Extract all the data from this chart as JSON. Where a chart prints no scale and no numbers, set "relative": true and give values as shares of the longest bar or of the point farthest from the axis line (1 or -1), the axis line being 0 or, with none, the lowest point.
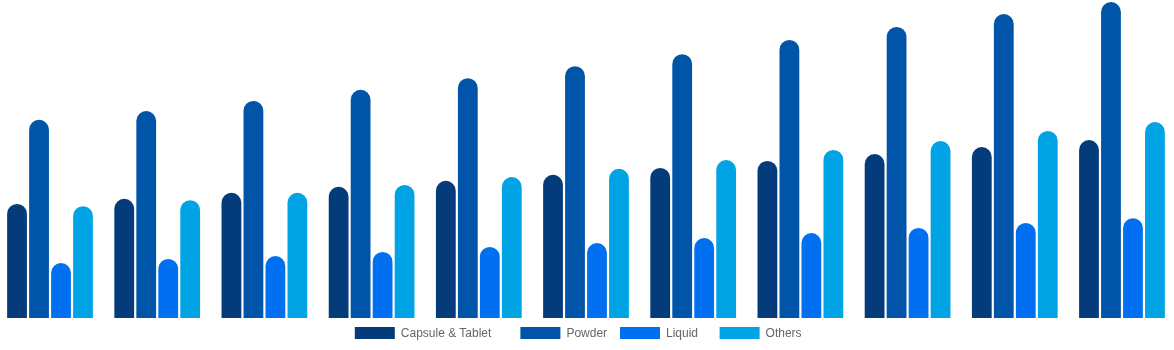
{
  "chart_data": {
    "type": "bar",
    "relative": true,
    "categories": [
      null,
      null,
      null,
      null,
      null,
      null,
      null,
      null,
      null,
      null,
      null
    ],
    "legend": "bottom",
    "series": [
      {
        "name": "Capsule & Tablet",
        "color": "#043b7a",
        "values": [
          0.361,
          0.377,
          0.396,
          0.415,
          0.434,
          0.453,
          0.475,
          0.497,
          0.519,
          0.541,
          0.563
        ]
      },
      {
        "name": "Powder",
        "color": "#0055a8",
        "values": [
          0.627,
          0.655,
          0.687,
          0.722,
          0.759,
          0.797,
          0.835,
          0.88,
          0.921,
          0.962,
          1
        ]
      },
      {
        "name": "Liquid",
        "color": "#0070f0",
        "values": [
          0.174,
          0.187,
          0.196,
          0.209,
          0.225,
          0.237,
          0.253,
          0.269,
          0.285,
          0.301,
          0.316
        ]
      },
      {
        "name": "Others",
        "color": "#00a4e4",
        "values": [
          0.354,
          0.373,
          0.396,
          0.421,
          0.446,
          0.472,
          0.5,
          0.532,
          0.56,
          0.592,
          0.62
        ]
      }
    ]
  }
}
